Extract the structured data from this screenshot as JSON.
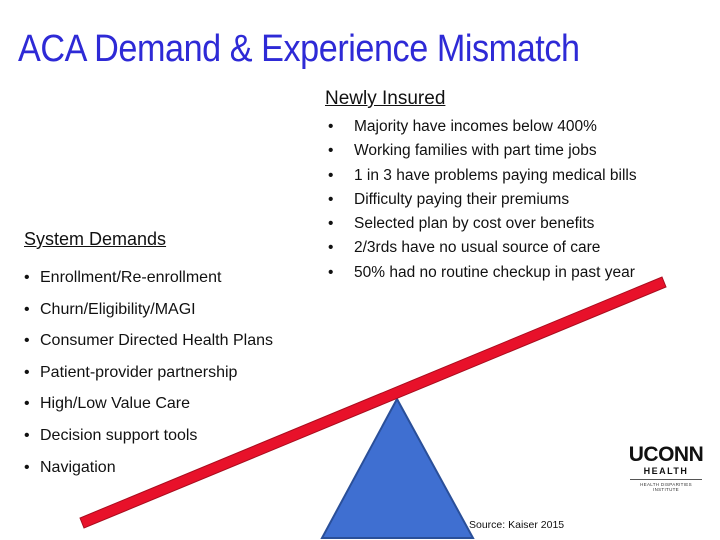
{
  "title": "ACA Demand & Experience Mismatch",
  "colors": {
    "title": "#2e2ad6",
    "beam": "#e8112a",
    "triangle": "#3f6fd1",
    "triangle_stroke": "#2a4f99"
  },
  "newly_insured": {
    "heading": "Newly Insured",
    "bullet": "•",
    "items": [
      "Majority have incomes below 400%",
      "Working families with part time jobs",
      "1 in 3 have problems paying medical bills",
      "Difficulty paying their premiums",
      "Selected plan by cost over benefits",
      "2/3rds have no usual source of care",
      "50% had no routine checkup in past year"
    ]
  },
  "system_demands": {
    "heading": "System Demands",
    "bullet": "•",
    "items": [
      "Enrollment/Re-enrollment",
      "Churn/Eligibility/MAGI",
      "Consumer Directed Health Plans",
      "Patient-provider partnership",
      "High/Low Value Care",
      "Decision support tools",
      "Navigation"
    ]
  },
  "logo": {
    "main": "UCONN",
    "sub": "HEALTH",
    "small_line1": "HEALTH DISPARITIES",
    "small_line2": "INSTITUTE"
  },
  "source": "Source: Kaiser 2015"
}
